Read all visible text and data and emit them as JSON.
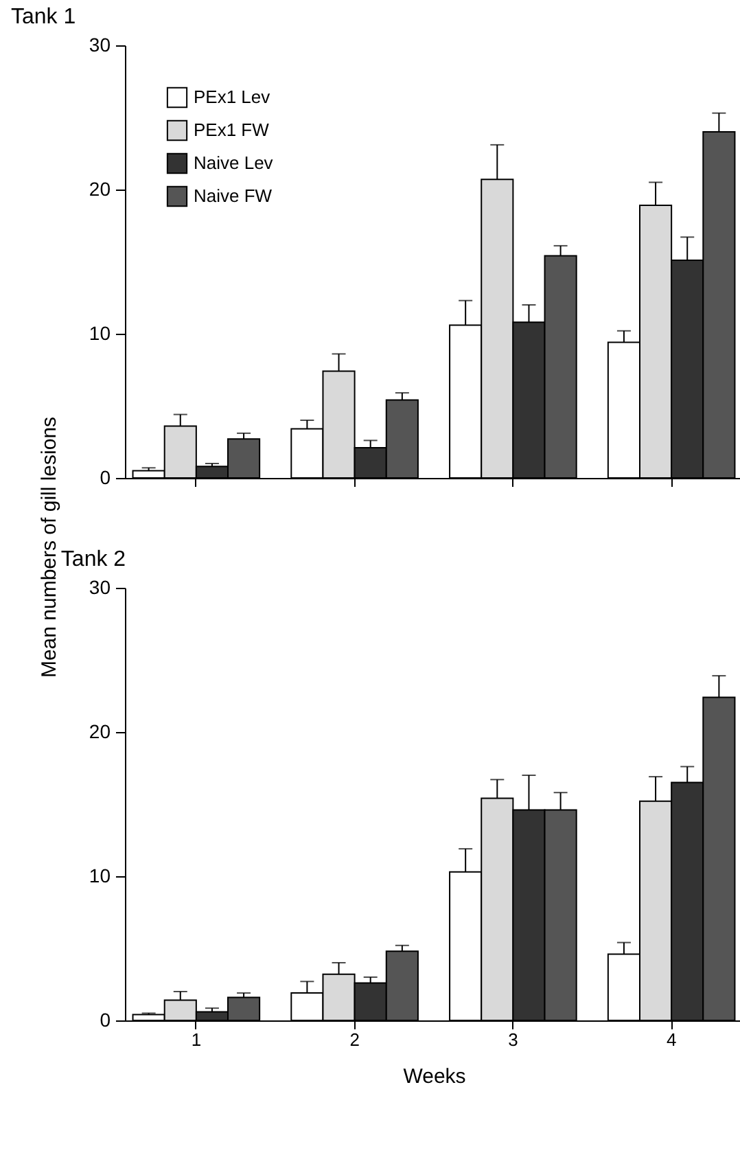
{
  "chart_data": [
    {
      "type": "bar",
      "title": "Tank 1",
      "ylabel": "Mean numbers of gill lesions",
      "categories": [
        "1",
        "2",
        "3",
        "4"
      ],
      "ylim": [
        0,
        30
      ],
      "yticks": [
        0,
        10,
        20,
        30
      ],
      "tick_labels": "y",
      "legend": "top left",
      "grid": false,
      "series": [
        {
          "name": "PEx1 Lev",
          "color": "#ffffff",
          "values": [
            0.5,
            3.4,
            10.6,
            9.4
          ],
          "errors": [
            [
              0.5,
              0.7
            ],
            [
              3.4,
              4.0
            ],
            [
              10.6,
              12.3
            ],
            [
              9.4,
              10.2
            ]
          ]
        },
        {
          "name": "PEx1 FW",
          "color": "#d9d9d9",
          "values": [
            3.6,
            7.4,
            20.7,
            18.9
          ],
          "errors": [
            [
              3.6,
              4.4
            ],
            [
              7.4,
              8.6
            ],
            [
              20.7,
              23.1
            ],
            [
              18.9,
              20.5
            ]
          ]
        },
        {
          "name": "Naive Lev",
          "color": "#333333",
          "values": [
            0.8,
            2.1,
            10.8,
            15.1
          ],
          "errors": [
            [
              0.8,
              1.0
            ],
            [
              2.1,
              2.6
            ],
            [
              10.8,
              12.0
            ],
            [
              15.1,
              16.7
            ]
          ]
        },
        {
          "name": "Naive FW",
          "color": "#555555",
          "values": [
            2.7,
            5.4,
            15.4,
            24.0
          ],
          "errors": [
            [
              2.7,
              3.1
            ],
            [
              5.4,
              5.9
            ],
            [
              15.4,
              16.1
            ],
            [
              24.0,
              25.3
            ]
          ]
        }
      ]
    },
    {
      "type": "bar",
      "title": "Tank 2",
      "xlabel": "Weeks",
      "categories": [
        "1",
        "2",
        "3",
        "4"
      ],
      "ylim": [
        0,
        30
      ],
      "yticks": [
        0,
        10,
        20,
        30
      ],
      "grid": false,
      "series": [
        {
          "color": "#ffffff",
          "values": [
            0.4,
            1.9,
            10.3,
            4.6
          ],
          "errors": [
            [
              0.4,
              0.5
            ],
            [
              1.9,
              2.7
            ],
            [
              10.3,
              11.9
            ],
            [
              4.6,
              5.4
            ]
          ]
        },
        {
          "color": "#d9d9d9",
          "values": [
            1.4,
            3.2,
            15.4,
            15.2
          ],
          "errors": [
            [
              1.4,
              2.0
            ],
            [
              3.2,
              4.0
            ],
            [
              15.4,
              16.7
            ],
            [
              15.2,
              16.9
            ]
          ]
        },
        {
          "color": "#333333",
          "values": [
            0.6,
            2.6,
            14.6,
            16.5
          ],
          "errors": [
            [
              0.6,
              0.85
            ],
            [
              2.6,
              3.0
            ],
            [
              14.6,
              17.0
            ],
            [
              16.5,
              17.6
            ]
          ]
        },
        {
          "color": "#555555",
          "values": [
            1.6,
            4.8,
            14.6,
            22.4
          ],
          "errors": [
            [
              1.6,
              1.9
            ],
            [
              4.8,
              5.2
            ],
            [
              14.6,
              15.8
            ],
            [
              22.4,
              23.9
            ]
          ]
        }
      ]
    }
  ]
}
